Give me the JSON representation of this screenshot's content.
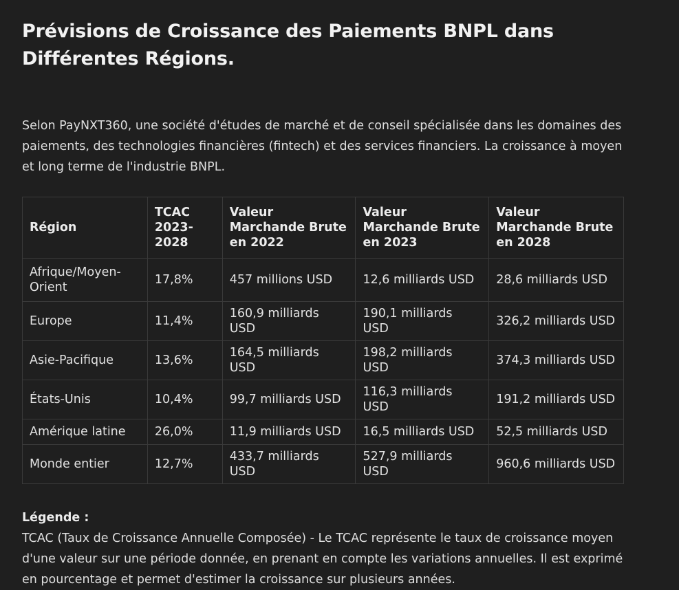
{
  "title": "Prévisions de Croissance des Paiements BNPL dans Différentes Régions.",
  "intro": "Selon PayNXT360, une société d'études de marché et de conseil spécialisée dans les domaines des paiements, des technologies financières (fintech) et des services financiers. La croissance à moyen et long terme de l'industrie BNPL.",
  "table": {
    "headers": [
      "Région",
      "TCAC 2023-2028",
      "Valeur Marchande Brute en 2022",
      "Valeur Marchande Brute en 2023",
      "Valeur Marchande Brute en 2028"
    ],
    "rows": [
      [
        "Afrique/Moyen-Orient",
        "17,8%",
        "457 millions USD",
        "12,6 milliards USD",
        "28,6 milliards USD"
      ],
      [
        "Europe",
        "11,4%",
        "160,9 milliards USD",
        "190,1 milliards USD",
        "326,2 milliards USD"
      ],
      [
        "Asie-Pacifique",
        "13,6%",
        "164,5 milliards USD",
        "198,2 milliards USD",
        "374,3 milliards USD"
      ],
      [
        "États-Unis",
        "10,4%",
        "99,7 milliards USD",
        "116,3 milliards USD",
        "191,2 milliards USD"
      ],
      [
        "Amérique latine",
        "26,0%",
        "11,9 milliards USD",
        "16,5 milliards USD",
        "52,5 milliards USD"
      ],
      [
        "Monde entier",
        "12,7%",
        "433,7 milliards USD",
        "527,9 milliards USD",
        "960,6 milliards USD"
      ]
    ]
  },
  "legend": {
    "title": "Légende :",
    "text": "TCAC (Taux de Croissance Annuelle Composée) - Le TCAC représente le taux de croissance moyen d'une valeur sur une période donnée, en prenant en compte les variations annuelles. Il est exprimé en pourcentage et permet d'estimer la croissance sur plusieurs années."
  },
  "colors": {
    "background": "#1f1f1f",
    "text": "#e6e6e6",
    "border": "#3a3a3a"
  }
}
